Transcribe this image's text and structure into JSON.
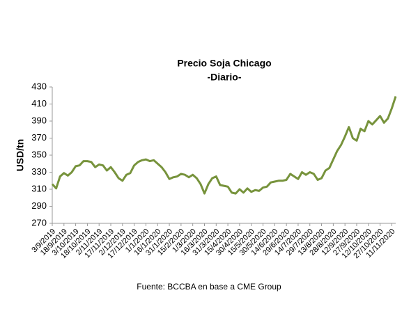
{
  "chart_data": {
    "type": "line",
    "title": "Precio Soja Chicago",
    "subtitle": "-Diario-",
    "ylabel": "USD/tn",
    "source": "Fuente: BCCBA en base a CME Group",
    "categories": [
      "3/9/2019",
      null,
      null,
      "18/9/2019",
      null,
      null,
      "3/10/2019",
      null,
      null,
      "18/10/2019",
      null,
      null,
      "2/11/2019",
      null,
      null,
      "17/11/2019",
      null,
      null,
      "2/12/2019",
      null,
      null,
      "17/12/2019",
      null,
      null,
      "1/1/2020",
      null,
      null,
      "16/1/2020",
      null,
      null,
      "31/1/2020",
      null,
      null,
      "15/2/2020",
      null,
      null,
      "1/3/2020",
      null,
      null,
      "16/3/2020",
      null,
      null,
      "31/3/2020",
      null,
      null,
      "15/4/2020",
      null,
      null,
      "30/4/2020",
      null,
      null,
      "15/5/2020",
      null,
      null,
      "30/5/2020",
      null,
      null,
      "14/6/2020",
      null,
      null,
      "29/6/2020",
      null,
      null,
      "14/7/2020",
      null,
      null,
      "29/7/2020",
      null,
      null,
      "13/8/2020",
      null,
      null,
      "28/8/2020",
      null,
      null,
      "12/9/2020",
      null,
      null,
      "27/9/2020",
      null,
      null,
      "12/10/2020",
      null,
      null,
      "27/10/2020",
      null,
      null,
      "11/11/2020",
      null
    ],
    "series": [
      {
        "name": "Precio",
        "color": "#77933c",
        "values": [
          316,
          311,
          325,
          329,
          326,
          330,
          337,
          338,
          343,
          343,
          342,
          336,
          339,
          338,
          332,
          336,
          330,
          323,
          320,
          327,
          329,
          338,
          342,
          344,
          345,
          343,
          344,
          340,
          336,
          330,
          322,
          324,
          325,
          328,
          327,
          324,
          327,
          323,
          316,
          305,
          316,
          323,
          325,
          315,
          314,
          313,
          306,
          305,
          310,
          306,
          311,
          307,
          309,
          308,
          312,
          313,
          318,
          319,
          320,
          320,
          321,
          328,
          325,
          322,
          330,
          327,
          330,
          328,
          321,
          323,
          332,
          335,
          345,
          355,
          362,
          372,
          383,
          370,
          367,
          381,
          378,
          390,
          386,
          391,
          396,
          388,
          393,
          405,
          419
        ]
      }
    ],
    "ylim": [
      270,
      430
    ],
    "yticks": [
      270,
      290,
      310,
      330,
      350,
      370,
      390,
      410,
      430
    ]
  }
}
